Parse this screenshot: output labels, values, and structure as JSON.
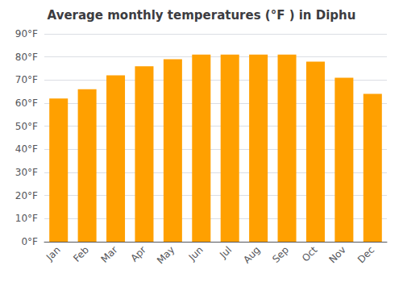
{
  "chart_data": {
    "type": "bar",
    "title": "Average monthly temperatures (°F ) in Diphu",
    "categories": [
      "Jan",
      "Feb",
      "Mar",
      "Apr",
      "May",
      "Jun",
      "Jul",
      "Aug",
      "Sep",
      "Oct",
      "Nov",
      "Dec"
    ],
    "values": [
      62,
      66,
      72,
      76,
      79,
      81,
      81,
      81,
      81,
      78,
      71,
      64
    ],
    "color": "#FFA000",
    "ylim": [
      0,
      90
    ],
    "yticks": [
      {
        "value": 0,
        "label": "0°F"
      },
      {
        "value": 10,
        "label": "10°F"
      },
      {
        "value": 20,
        "label": "20°F"
      },
      {
        "value": 30,
        "label": "30°F"
      },
      {
        "value": 40,
        "label": "40°F"
      },
      {
        "value": 50,
        "label": "50°F"
      },
      {
        "value": 60,
        "label": "60°F"
      },
      {
        "value": 70,
        "label": "70°F"
      },
      {
        "value": 80,
        "label": "80°F"
      },
      {
        "value": 90,
        "label": "90°F"
      }
    ],
    "grid": true
  }
}
